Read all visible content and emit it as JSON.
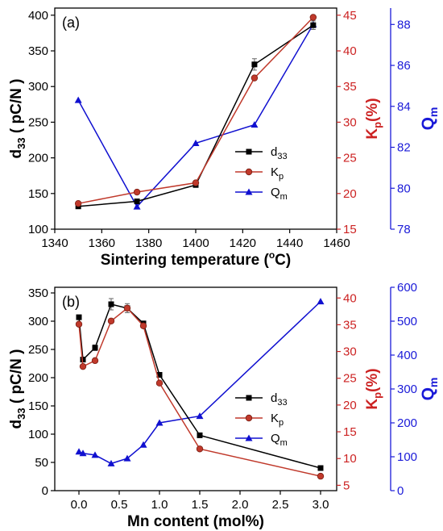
{
  "colors": {
    "d33": "#000000",
    "kp": "#c0392b",
    "qm": "#1010d0",
    "kp_axis": "#cc2222",
    "qm_axis": "#1a1ad8"
  },
  "chart_data": [
    {
      "type": "line",
      "panel_label": "(a)",
      "xlabel_main": "Sintering temperature (",
      "xlabel_sup": "o",
      "xlabel_tail": "C)",
      "xlim": [
        1340,
        1460
      ],
      "xticks": [
        1340,
        1360,
        1380,
        1400,
        1420,
        1440,
        1460
      ],
      "left_axis": {
        "label_d": "d",
        "label_sub": "33",
        "label_tail": " ( pC/N )",
        "lim": [
          100,
          410
        ],
        "ticks": [
          100,
          150,
          200,
          250,
          300,
          350,
          400
        ]
      },
      "kp_axis": {
        "label_k": "K",
        "label_sub": "p",
        "label_tail": "(%)",
        "lim": [
          15,
          46
        ],
        "ticks": [
          15,
          20,
          25,
          30,
          35,
          40,
          45
        ]
      },
      "qm_axis": {
        "label_q": "Q",
        "label_sub": "m",
        "lim": [
          78,
          88.8
        ],
        "ticks": [
          78,
          80,
          82,
          84,
          86,
          88
        ]
      },
      "legend": [
        {
          "key": "d33",
          "main": "d",
          "sub": "33"
        },
        {
          "key": "kp",
          "main": "K",
          "sub": "p"
        },
        {
          "key": "qm",
          "main": "Q",
          "sub": "m"
        }
      ],
      "series": {
        "d33": {
          "x": [
            1350,
            1375,
            1400,
            1425,
            1450
          ],
          "y": [
            132,
            139,
            162,
            331,
            386
          ],
          "err": [
            3,
            2,
            3,
            8,
            6
          ]
        },
        "kp": {
          "x": [
            1350,
            1375,
            1400,
            1425,
            1450
          ],
          "y": [
            18.6,
            20.2,
            21.5,
            36.2,
            44.7
          ]
        },
        "qm": {
          "x": [
            1350,
            1375,
            1400,
            1425,
            1450
          ],
          "y": [
            84.3,
            79.1,
            82.2,
            83.1,
            88.0
          ]
        }
      }
    },
    {
      "type": "line",
      "panel_label": "(b)",
      "xlabel_main": "Mn content (mol%)",
      "xlim": [
        -0.3,
        3.2
      ],
      "xticks": [
        0.0,
        0.5,
        1.0,
        1.5,
        2.0,
        2.5,
        3.0
      ],
      "left_axis": {
        "label_d": "d",
        "label_sub": "33",
        "label_tail": " ( pC/N )",
        "lim": [
          0,
          360
        ],
        "ticks": [
          0,
          50,
          100,
          150,
          200,
          250,
          300,
          350
        ]
      },
      "kp_axis": {
        "label_k": "K",
        "label_sub": "p",
        "label_tail": "(%)",
        "lim": [
          4,
          42
        ],
        "ticks": [
          5,
          10,
          15,
          20,
          25,
          30,
          35,
          40
        ]
      },
      "qm_axis": {
        "label_q": "Q",
        "label_sub": "m",
        "lim": [
          0,
          600
        ],
        "ticks": [
          0,
          100,
          200,
          300,
          400,
          500,
          600
        ]
      },
      "legend": [
        {
          "key": "d33",
          "main": "d",
          "sub": "33"
        },
        {
          "key": "kp",
          "main": "K",
          "sub": "p"
        },
        {
          "key": "qm",
          "main": "Q",
          "sub": "m"
        }
      ],
      "series": {
        "d33": {
          "x": [
            0,
            0.05,
            0.2,
            0.4,
            0.6,
            0.8,
            1.0,
            1.5,
            3.0
          ],
          "y": [
            307,
            232,
            253,
            330,
            323,
            296,
            205,
            98,
            40
          ],
          "err": [
            3,
            3,
            5,
            10,
            8,
            4,
            4,
            2,
            2
          ]
        },
        "kp": {
          "x": [
            0,
            0.05,
            0.2,
            0.4,
            0.6,
            0.8,
            1.0,
            1.5,
            3.0
          ],
          "y": [
            35.1,
            27.2,
            28.3,
            35.7,
            38.1,
            34.8,
            24.1,
            11.8,
            6.7
          ]
        },
        "qm": {
          "x": [
            0,
            0.05,
            0.2,
            0.4,
            0.6,
            0.8,
            1.0,
            1.5,
            3.0
          ],
          "y": [
            115,
            110,
            105,
            80,
            95,
            135,
            200,
            220,
            558
          ]
        }
      }
    }
  ]
}
